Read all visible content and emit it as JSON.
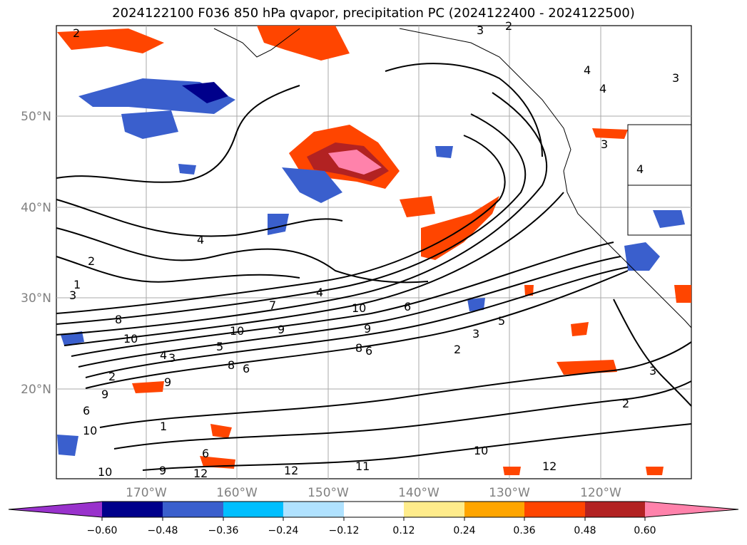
{
  "title": "2024122100 F036 850 hPa qvapor, precipitation PC (2024122400 - 2024122500)",
  "map": {
    "lat_labels": [
      "50°N",
      "40°N",
      "30°N",
      "20°N"
    ],
    "lon_labels": [
      "170°W",
      "160°W",
      "150°W",
      "140°W",
      "130°W",
      "120°W"
    ],
    "contour_labels": [
      "2",
      "3",
      "4",
      "4",
      "3",
      "4",
      "3",
      "2",
      "4",
      "2",
      "1",
      "3",
      "8",
      "10",
      "4",
      "3",
      "2",
      "9",
      "6",
      "7",
      "4",
      "10",
      "10",
      "9",
      "9",
      "6",
      "5",
      "8",
      "6",
      "3",
      "2",
      "9",
      "8",
      "6",
      "6",
      "10",
      "10",
      "9",
      "12",
      "12",
      "11",
      "10",
      "12",
      "2",
      "3",
      "1",
      "5"
    ]
  },
  "colorbar": {
    "ticks": [
      "−0.60",
      "−0.48",
      "−0.36",
      "−0.24",
      "−0.12",
      "0.12",
      "0.24",
      "0.36",
      "0.48",
      "0.60"
    ],
    "colors": [
      "#9932CC",
      "#00008B",
      "#3A5FCD",
      "#00BFFF",
      "#B0E2FF",
      "#FFFFFF",
      "#FFEC8B",
      "#FFA500",
      "#FF4500",
      "#B22222",
      "#FF82AB",
      "#FF82AB"
    ]
  }
}
